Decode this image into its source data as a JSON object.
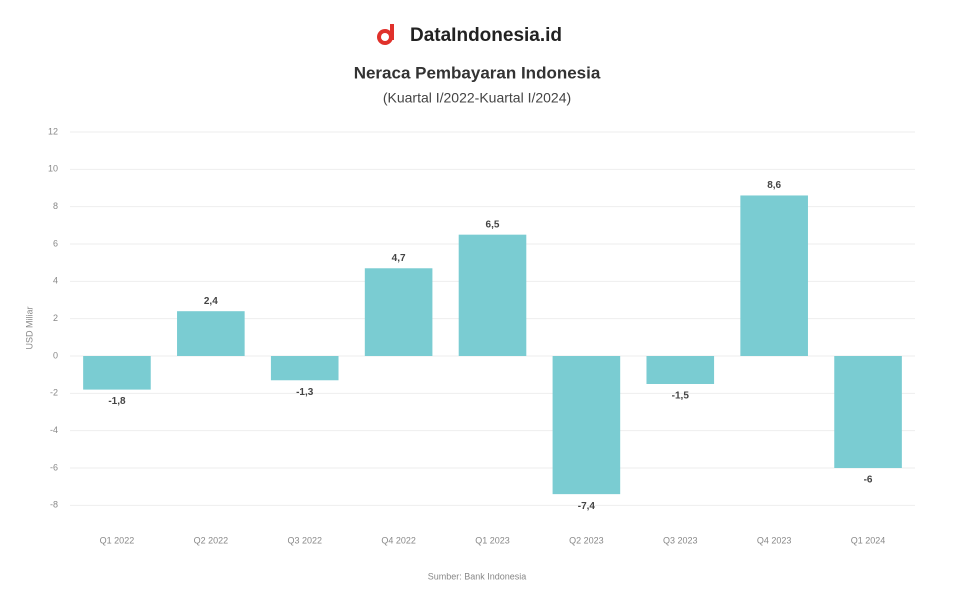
{
  "brand": "DataIndonesia.id",
  "chart_data": {
    "type": "bar",
    "title": "Neraca Pembayaran Indonesia",
    "subtitle": "(Kuartal I/2022-Kuartal I/2024)",
    "y_label": "USD Miliar",
    "source": "Sumber: Bank Indonesia",
    "categories": [
      "Q1 2022",
      "Q2 2022",
      "Q3 2022",
      "Q4 2022",
      "Q1 2023",
      "Q2 2023",
      "Q3 2023",
      "Q4 2023",
      "Q1 2024"
    ],
    "values": [
      -1.8,
      2.4,
      -1.3,
      4.7,
      6.5,
      -7.4,
      -1.5,
      8.6,
      -6
    ],
    "value_labels": [
      "-1,8",
      "2,4",
      "-1,3",
      "4,7",
      "6,5",
      "-7,4",
      "-1,5",
      "8,6",
      "-6"
    ],
    "color": "#7accd2",
    "ylim": [
      -9,
      12
    ],
    "yticks": [
      -8,
      -6,
      -4,
      -2,
      0,
      2,
      4,
      6,
      8,
      10,
      12
    ],
    "grid": true
  }
}
